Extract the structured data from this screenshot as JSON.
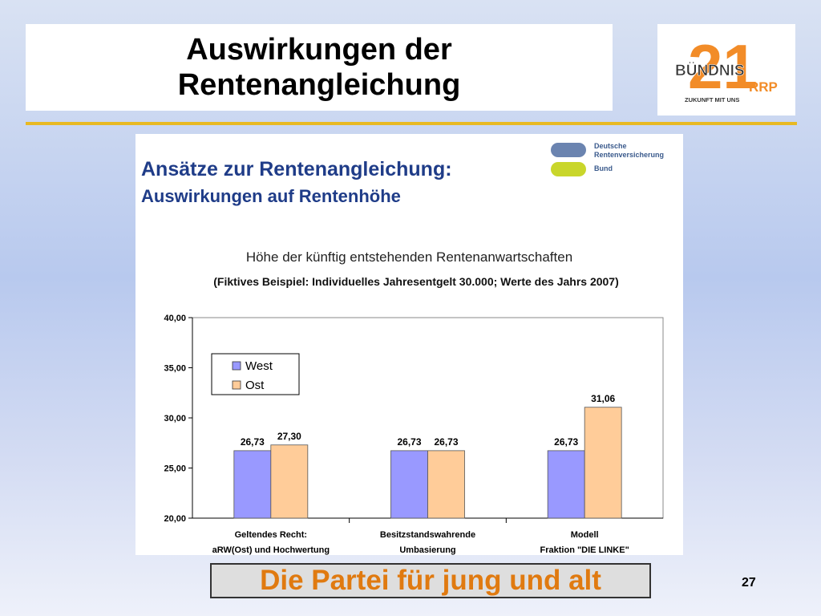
{
  "slide": {
    "title_line1": "Auswirkungen der",
    "title_line2": "Rentenangleichung",
    "footer": "Die Partei für jung und alt",
    "page_number": "27",
    "accent_color": "#e8b923",
    "footer_color": "#e07a10"
  },
  "party_logo": {
    "number": "21",
    "name": "BÜNDNIS",
    "abbr": "RRP",
    "slogan": "ZUKUNFT MIT UNS"
  },
  "embedded_slide": {
    "title_line1": "Ansätze zur Rentenangleichung:",
    "title_line2": "Auswirkungen auf Rentenhöhe",
    "logo_line1": "Deutsche",
    "logo_line2": "Rentenversicherung",
    "logo_line3": "Bund"
  },
  "chart_data": {
    "type": "bar",
    "title": "Höhe der künftig entstehenden Rentenanwartschaften",
    "subtitle": "(Fiktives Beispiel: Individuelles Jahresentgelt 30.000; Werte des Jahrs 2007)",
    "categories": [
      [
        "Geltendes Recht:",
        "aRW(Ost) und Hochwertung"
      ],
      [
        "Besitzstandswahrende",
        "Umbasierung"
      ],
      [
        "Modell",
        "Fraktion \"DIE LINKE\""
      ]
    ],
    "series": [
      {
        "name": "West",
        "color": "#9999ff",
        "values": [
          26.73,
          26.73,
          26.73
        ],
        "labels": [
          "26,73",
          "26,73",
          "26,73"
        ]
      },
      {
        "name": "Ost",
        "color": "#ffcc99",
        "values": [
          27.3,
          26.73,
          31.06
        ],
        "labels": [
          "27,30",
          "26,73",
          "31,06"
        ]
      }
    ],
    "ylim": [
      20,
      40
    ],
    "yticks": [
      "20,00",
      "25,00",
      "30,00",
      "35,00",
      "40,00"
    ],
    "ytick_values": [
      20,
      25,
      30,
      35,
      40
    ],
    "legend_position": "top-left",
    "grid": false
  }
}
